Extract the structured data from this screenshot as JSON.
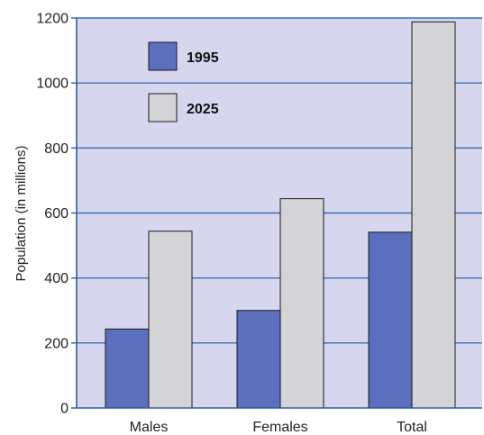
{
  "chart_data": {
    "type": "bar",
    "categories": [
      "Males",
      "Females",
      "Total"
    ],
    "series": [
      {
        "name": "1995",
        "values": [
          243,
          300,
          541
        ]
      },
      {
        "name": "2025",
        "values": [
          544,
          644,
          1188
        ]
      }
    ],
    "title": "",
    "xlabel": "",
    "ylabel": "Population (in millions)",
    "ylim": [
      0,
      1200
    ],
    "yticks": [
      "0",
      "200",
      "400",
      "600",
      "800",
      "1000",
      "1200"
    ],
    "grid": true,
    "legend_position": "top-left",
    "colors": {
      "plot_background": "#d6d6ee",
      "gridline": "#3a6fb8",
      "axis": "#2f5e9e",
      "bar_outline": "#1a1a1a",
      "series": [
        "#5c6fbc",
        "#d4d4d6"
      ]
    }
  }
}
